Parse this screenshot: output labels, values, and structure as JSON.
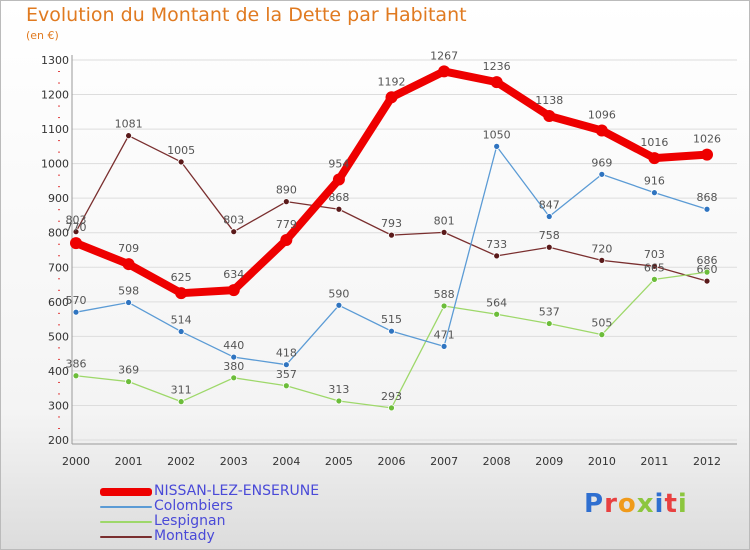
{
  "header": {
    "title": "Evolution du Montant de la Dette par Habitant",
    "subtitle": "(en €)"
  },
  "colors": {
    "title": "#e07a20",
    "legend_text": "#4a4ad8",
    "grid": "#dddddd",
    "axis_text": "#333333"
  },
  "logo": {
    "letters": [
      {
        "char": "P",
        "color": "#2f6fd0"
      },
      {
        "char": "r",
        "color": "#e84040"
      },
      {
        "char": "o",
        "color": "#f09a1a"
      },
      {
        "char": "x",
        "color": "#8cc63e"
      },
      {
        "char": "i",
        "color": "#2f6fd0"
      },
      {
        "char": "t",
        "color": "#e84040"
      },
      {
        "char": "i",
        "color": "#8cc63e"
      }
    ]
  },
  "chart_data": {
    "type": "line",
    "title": "Evolution du Montant de la Dette par Habitant",
    "subtitle": "(en €)",
    "x": [
      "2000",
      "2001",
      "2002",
      "2003",
      "2004",
      "2005",
      "2006",
      "2007",
      "2008",
      "2009",
      "2010",
      "2011",
      "2012"
    ],
    "yticks": [
      "200",
      "300",
      "400",
      "500",
      "600",
      "700",
      "800",
      "900",
      "1000",
      "1100",
      "1200",
      "1300"
    ],
    "ylim": [
      200,
      1300
    ],
    "grid": true,
    "legend_position": "bottom-left",
    "series": [
      {
        "name": "Montady",
        "color": "#7a2f2f",
        "dot_color": "#5a1a1a",
        "width": 1.3,
        "marker": 3,
        "values": [
          803,
          1081,
          1005,
          803,
          890,
          868,
          793,
          801,
          733,
          758,
          720,
          703,
          660
        ],
        "labels": [
          "803",
          "1081",
          "1005",
          "803",
          "890",
          "868",
          "793",
          "801",
          "733",
          "758",
          "720",
          "703",
          "660"
        ]
      },
      {
        "name": "Lespignan",
        "color": "#9ed86a",
        "dot_color": "#6cbd3a",
        "width": 1.3,
        "marker": 3,
        "values": [
          386,
          369,
          311,
          380,
          357,
          313,
          293,
          588,
          564,
          537,
          505,
          665,
          686
        ],
        "labels": [
          "386",
          "369",
          "311",
          "380",
          "357",
          "313",
          "293",
          "588",
          "564",
          "537",
          "505",
          "665",
          "686"
        ]
      },
      {
        "name": "Colombiers",
        "color": "#5b9bd5",
        "dot_color": "#2f74c0",
        "width": 1.3,
        "marker": 3,
        "values": [
          570,
          598,
          514,
          440,
          418,
          590,
          515,
          471,
          1050,
          847,
          969,
          916,
          868
        ],
        "labels": [
          "570",
          "598",
          "514",
          "440",
          "418",
          "590",
          "515",
          "471",
          "1050",
          "847",
          "969",
          "916",
          "868"
        ]
      },
      {
        "name": "NISSAN-LEZ-ENSERUNE",
        "color": "#ee0000",
        "dot_color": "#ee0000",
        "width": 8,
        "marker": 6,
        "values": [
          770,
          709,
          625,
          634,
          779,
          954,
          1192,
          1267,
          1236,
          1138,
          1096,
          1016,
          1026
        ],
        "labels": [
          "770",
          "709",
          "625",
          "634",
          "779",
          "954",
          "1192",
          "1267",
          "1236",
          "1138",
          "1096",
          "1016",
          "1026"
        ]
      }
    ],
    "legend": [
      {
        "name": "NISSAN-LEZ-ENSERUNE",
        "color": "#ee0000",
        "thickness": 8
      },
      {
        "name": "Colombiers",
        "color": "#5b9bd5",
        "thickness": 2
      },
      {
        "name": "Lespignan",
        "color": "#9ed86a",
        "thickness": 2
      },
      {
        "name": "Montady",
        "color": "#7a2f2f",
        "thickness": 2
      }
    ]
  }
}
